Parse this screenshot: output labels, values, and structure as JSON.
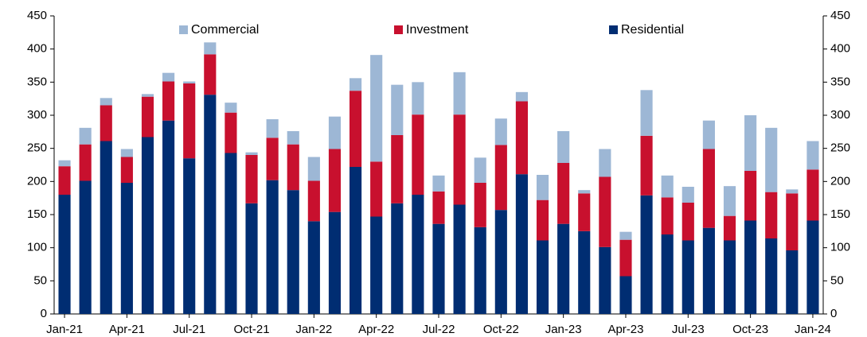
{
  "chart_data": {
    "type": "stacked_bar",
    "categories": [
      "Jan-21",
      null,
      null,
      "Apr-21",
      null,
      null,
      "Jul-21",
      null,
      null,
      "Oct-21",
      null,
      null,
      "Jan-22",
      null,
      null,
      "Apr-22",
      null,
      null,
      "Jul-22",
      null,
      null,
      "Oct-22",
      null,
      null,
      "Jan-23",
      null,
      null,
      "Apr-23",
      null,
      null,
      "Jul-23",
      null,
      null,
      "Oct-23",
      null,
      null,
      "Jan-24"
    ],
    "series": [
      {
        "name": "Residential",
        "color": "#002d72",
        "values": [
          180,
          201,
          261,
          198,
          267,
          292,
          235,
          331,
          243,
          167,
          202,
          187,
          140,
          154,
          222,
          147,
          167,
          180,
          136,
          165,
          131,
          157,
          211,
          111,
          136,
          125,
          101,
          57,
          179,
          120,
          111,
          130,
          111,
          141,
          114,
          96,
          141
        ]
      },
      {
        "name": "Investment",
        "color": "#c8102e",
        "values": [
          43,
          55,
          54,
          39,
          61,
          59,
          113,
          61,
          61,
          73,
          64,
          69,
          61,
          95,
          115,
          83,
          103,
          121,
          49,
          136,
          67,
          98,
          110,
          61,
          92,
          57,
          106,
          55,
          90,
          56,
          57,
          119,
          37,
          75,
          70,
          86,
          77
        ]
      },
      {
        "name": "Commercial",
        "color": "#9db7d5",
        "values": [
          9,
          25,
          11,
          12,
          4,
          13,
          3,
          18,
          15,
          4,
          28,
          20,
          36,
          49,
          19,
          161,
          76,
          49,
          24,
          64,
          38,
          40,
          14,
          38,
          48,
          5,
          42,
          12,
          69,
          33,
          24,
          43,
          45,
          84,
          97,
          6,
          43
        ]
      }
    ],
    "ylim": [
      0,
      450
    ],
    "yticks": [
      0,
      50,
      100,
      150,
      200,
      250,
      300,
      350,
      400,
      450
    ],
    "y2lim": [
      0,
      450
    ],
    "y2ticks": [
      0,
      50,
      100,
      150,
      200,
      250,
      300,
      350,
      400,
      450
    ],
    "legend": "top",
    "grid": false
  }
}
